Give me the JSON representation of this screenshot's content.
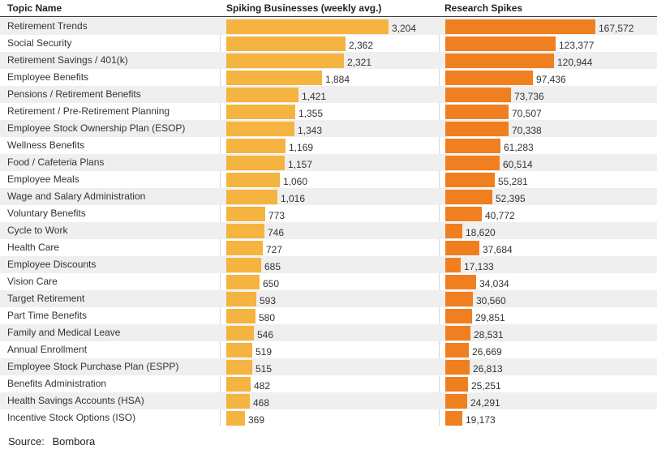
{
  "chart_data": {
    "type": "table",
    "source_label": "Source:",
    "source_value": "Bombora",
    "columns": [
      "Topic Name",
      "Spiking Businesses (weekly avg.)",
      "Research Spikes"
    ],
    "series": [
      {
        "name": "Spiking Businesses (weekly avg.)",
        "color": "#f5b33f",
        "max": 3204
      },
      {
        "name": "Research Spikes",
        "color": "#f07f1f",
        "max": 167572
      }
    ],
    "rows": [
      {
        "topic": "Retirement Trends",
        "businesses": 3204,
        "businesses_label": "3,204",
        "spikes": 167572,
        "spikes_label": "167,572"
      },
      {
        "topic": "Social Security",
        "businesses": 2362,
        "businesses_label": "2,362",
        "spikes": 123377,
        "spikes_label": "123,377"
      },
      {
        "topic": "Retirement Savings / 401(k)",
        "businesses": 2321,
        "businesses_label": "2,321",
        "spikes": 120944,
        "spikes_label": "120,944"
      },
      {
        "topic": "Employee Benefits",
        "businesses": 1884,
        "businesses_label": "1,884",
        "spikes": 97436,
        "spikes_label": "97,436"
      },
      {
        "topic": "Pensions / Retirement Benefits",
        "businesses": 1421,
        "businesses_label": "1,421",
        "spikes": 73736,
        "spikes_label": "73,736"
      },
      {
        "topic": "Retirement / Pre-Retirement Planning",
        "businesses": 1355,
        "businesses_label": "1,355",
        "spikes": 70507,
        "spikes_label": "70,507"
      },
      {
        "topic": "Employee Stock Ownership Plan (ESOP)",
        "businesses": 1343,
        "businesses_label": "1,343",
        "spikes": 70338,
        "spikes_label": "70,338"
      },
      {
        "topic": "Wellness Benefits",
        "businesses": 1169,
        "businesses_label": "1,169",
        "spikes": 61283,
        "spikes_label": "61,283"
      },
      {
        "topic": "Food / Cafeteria Plans",
        "businesses": 1157,
        "businesses_label": "1,157",
        "spikes": 60514,
        "spikes_label": "60,514"
      },
      {
        "topic": "Employee Meals",
        "businesses": 1060,
        "businesses_label": "1,060",
        "spikes": 55281,
        "spikes_label": "55,281"
      },
      {
        "topic": "Wage and Salary Administration",
        "businesses": 1016,
        "businesses_label": "1,016",
        "spikes": 52395,
        "spikes_label": "52,395"
      },
      {
        "topic": "Voluntary Benefits",
        "businesses": 773,
        "businesses_label": "773",
        "spikes": 40772,
        "spikes_label": "40,772"
      },
      {
        "topic": "Cycle to Work",
        "businesses": 746,
        "businesses_label": "746",
        "spikes": 18620,
        "spikes_label": "18,620"
      },
      {
        "topic": "Health Care",
        "businesses": 727,
        "businesses_label": "727",
        "spikes": 37684,
        "spikes_label": "37,684"
      },
      {
        "topic": "Employee Discounts",
        "businesses": 685,
        "businesses_label": "685",
        "spikes": 17133,
        "spikes_label": "17,133"
      },
      {
        "topic": "Vision Care",
        "businesses": 650,
        "businesses_label": "650",
        "spikes": 34034,
        "spikes_label": "34,034"
      },
      {
        "topic": "Target Retirement",
        "businesses": 593,
        "businesses_label": "593",
        "spikes": 30560,
        "spikes_label": "30,560"
      },
      {
        "topic": "Part Time Benefits",
        "businesses": 580,
        "businesses_label": "580",
        "spikes": 29851,
        "spikes_label": "29,851"
      },
      {
        "topic": "Family and Medical Leave",
        "businesses": 546,
        "businesses_label": "546",
        "spikes": 28531,
        "spikes_label": "28,531"
      },
      {
        "topic": "Annual Enrollment",
        "businesses": 519,
        "businesses_label": "519",
        "spikes": 26669,
        "spikes_label": "26,669"
      },
      {
        "topic": "Employee Stock Purchase Plan (ESPP)",
        "businesses": 515,
        "businesses_label": "515",
        "spikes": 26813,
        "spikes_label": "26,813"
      },
      {
        "topic": "Benefits Administration",
        "businesses": 482,
        "businesses_label": "482",
        "spikes": 25251,
        "spikes_label": "25,251"
      },
      {
        "topic": "Health Savings Accounts (HSA)",
        "businesses": 468,
        "businesses_label": "468",
        "spikes": 24291,
        "spikes_label": "24,291"
      },
      {
        "topic": "Incentive Stock Options (ISO)",
        "businesses": 369,
        "businesses_label": "369",
        "spikes": 19173,
        "spikes_label": "19,173"
      }
    ]
  }
}
